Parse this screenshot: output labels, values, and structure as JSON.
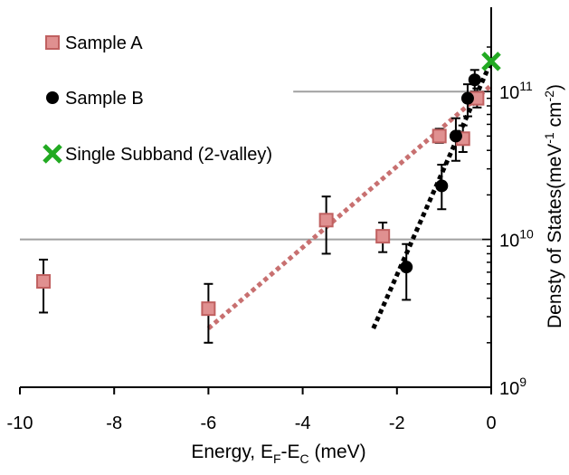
{
  "chart_data": {
    "type": "scatter",
    "title": "",
    "xlabel": {
      "main": "Energy, E",
      "sub1": "F",
      "mid": "-E",
      "sub2": "C",
      "unit": " (meV)"
    },
    "ylabel": {
      "main": "Densty of States(meV",
      "sup1": "-1",
      "mid": " cm",
      "sup2": "-2",
      "end": ")"
    },
    "x_ticks": [
      "-10",
      "-8",
      "-6",
      "-4",
      "-2",
      "0"
    ],
    "y_ticks": [
      {
        "base": "10",
        "exp": "9",
        "value": 1000000000.0
      },
      {
        "base": "10",
        "exp": "10",
        "value": 10000000000.0
      },
      {
        "base": "10",
        "exp": "11",
        "value": 100000000000.0
      }
    ],
    "xlim": [
      -10,
      0
    ],
    "ylim": [
      1000000000.0,
      200000000000.0
    ],
    "yscale": "log",
    "reference_lines": [
      {
        "y": 10000000000.0,
        "x_from": -10,
        "x_to": 0
      },
      {
        "y": 100000000000.0,
        "x_from": -4.2,
        "x_to": 0
      }
    ],
    "legend_position": "top-left",
    "series": [
      {
        "name": "Sample A",
        "marker": "square",
        "color": "#e09090",
        "edge": "#c06060",
        "points": [
          {
            "x": -9.5,
            "y": 5200000000.0,
            "err_lo": 3200000000.0,
            "err_hi": 7300000000.0
          },
          {
            "x": -6.0,
            "y": 3400000000.0,
            "err_lo": 2000000000.0,
            "err_hi": 5000000000.0
          },
          {
            "x": -3.5,
            "y": 13500000000.0,
            "err_lo": 8000000000.0,
            "err_hi": 19500000000.0
          },
          {
            "x": -2.3,
            "y": 10500000000.0,
            "err_lo": 8200000000.0,
            "err_hi": 13000000000.0
          },
          {
            "x": -1.1,
            "y": 50000000000.0,
            "err_lo": 45000000000.0,
            "err_hi": 56000000000.0
          },
          {
            "x": -0.6,
            "y": 48000000000.0,
            "err_lo": 39000000000.0,
            "err_hi": 59000000000.0
          },
          {
            "x": -0.3,
            "y": 90000000000.0,
            "err_lo": 78000000000.0,
            "err_hi": 105000000000.0
          }
        ],
        "fit": {
          "x1": -6.0,
          "y1": 2500000000.0,
          "x2": 0.0,
          "y2": 110000000000.0,
          "color": "#c87070"
        }
      },
      {
        "name": "Sample B",
        "marker": "circle",
        "color": "#000000",
        "edge": "#000000",
        "points": [
          {
            "x": -1.8,
            "y": 6500000000.0,
            "err_lo": 3900000000.0,
            "err_hi": 9300000000.0
          },
          {
            "x": -1.05,
            "y": 23000000000.0,
            "err_lo": 16000000000.0,
            "err_hi": 32000000000.0
          },
          {
            "x": -0.75,
            "y": 50000000000.0,
            "err_lo": 34000000000.0,
            "err_hi": 66000000000.0
          },
          {
            "x": -0.5,
            "y": 90000000000.0,
            "err_lo": 68000000000.0,
            "err_hi": 112000000000.0
          },
          {
            "x": -0.35,
            "y": 120000000000.0,
            "err_lo": 100000000000.0,
            "err_hi": 140000000000.0
          }
        ],
        "fit": {
          "x1": -2.5,
          "y1": 2500000000.0,
          "x2": 0.0,
          "y2": 160000000000.0,
          "color": "#000000"
        }
      },
      {
        "name": "Single Subband (2-valley)",
        "marker": "cross",
        "color": "#22aa22",
        "edge": "#22aa22",
        "points": [
          {
            "x": 0.0,
            "y": 160000000000.0
          }
        ]
      }
    ]
  }
}
